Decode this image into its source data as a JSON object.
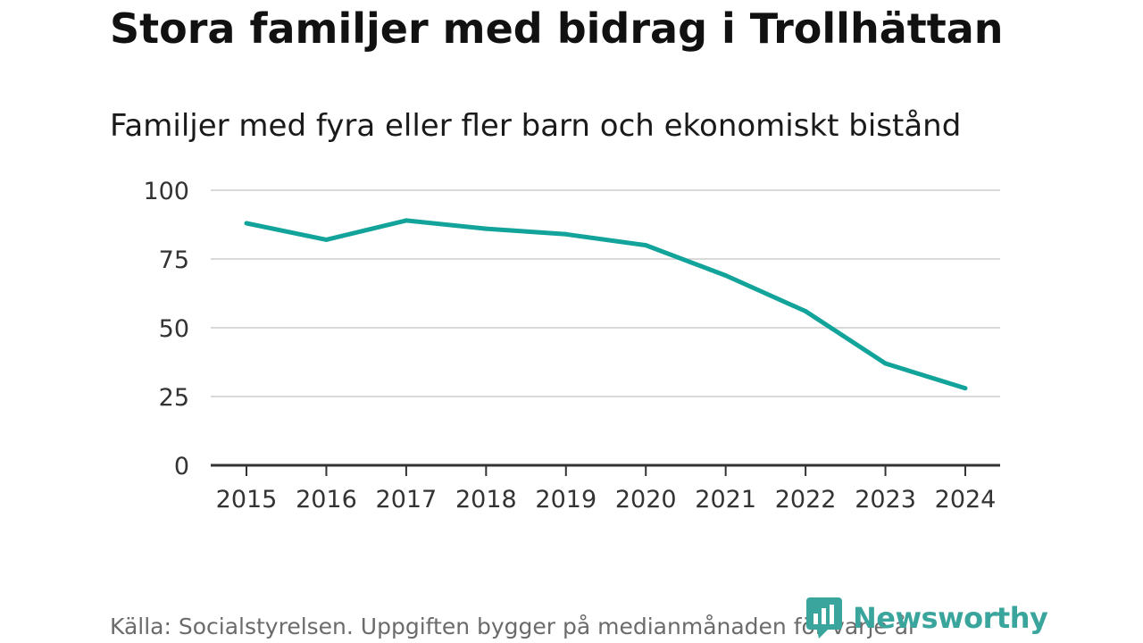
{
  "title": "Stora familjer med bidrag i Trollhättan",
  "subtitle": "Familjer med fyra eller fler barn och ekonomiskt bistånd",
  "footer": "Källa: Socialstyrelsen. Uppgiften bygger på medianmånaden för varje år",
  "brand": {
    "name": "Newsworthy",
    "color": "#3aa59c",
    "icon": "newsworthy-logo-icon"
  },
  "colors": {
    "line": "#12a39a",
    "grid": "#d9d9d9",
    "axis": "#333333"
  },
  "chart_data": {
    "type": "line",
    "title": "Stora familjer med bidrag i Trollhättan",
    "subtitle": "Familjer med fyra eller fler barn och ekonomiskt bistånd",
    "xlabel": "",
    "ylabel": "",
    "x": [
      "2015",
      "2016",
      "2017",
      "2018",
      "2019",
      "2020",
      "2021",
      "2022",
      "2023",
      "2024"
    ],
    "series": [
      {
        "name": "Familjer med fyra eller fler barn och ekonomiskt bistånd",
        "values": [
          88,
          82,
          89,
          86,
          84,
          80,
          69,
          56,
          37,
          28
        ]
      }
    ],
    "ylim": [
      0,
      100
    ],
    "yticks": [
      0,
      25,
      50,
      75,
      100
    ],
    "grid": true,
    "legend": "none"
  }
}
